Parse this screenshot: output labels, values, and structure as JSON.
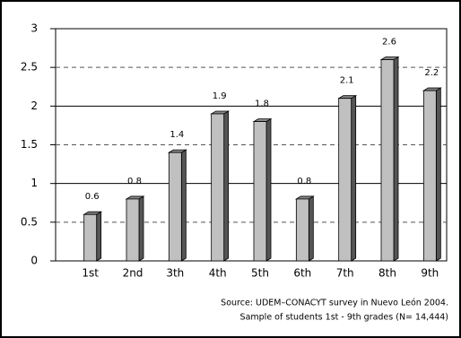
{
  "chart_data": {
    "type": "bar3d",
    "categories": [
      "1st",
      "2nd",
      "3th",
      "4th",
      "5th",
      "6th",
      "7th",
      "8th",
      "9th"
    ],
    "values": [
      0.6,
      0.8,
      1.4,
      1.9,
      1.8,
      0.8,
      2.1,
      2.6,
      2.2
    ],
    "color": "#c0c0c0",
    "ylim": [
      0,
      3
    ],
    "yticks": [
      0,
      0.5,
      1,
      1.5,
      2,
      2.5,
      3
    ],
    "grid": true,
    "annotations": [
      "Source: UDEM–CONACYT survey in Nuevo León 2004.",
      "Sample of students 1st - 9th grades (N= 14,444)"
    ]
  }
}
